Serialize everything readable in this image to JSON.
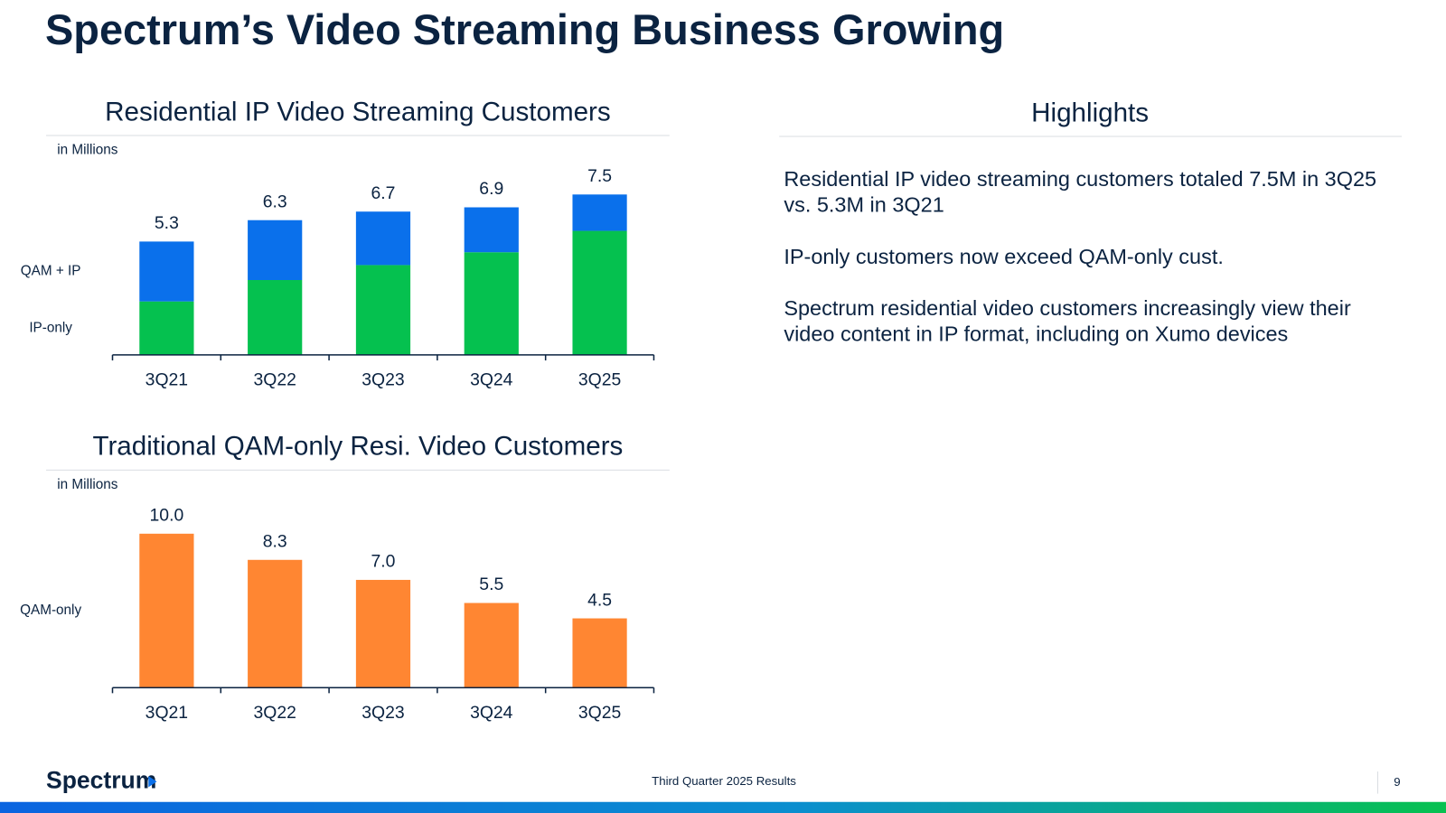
{
  "title": "Spectrum’s Video Streaming Business Growing",
  "chart_data": [
    {
      "type": "bar",
      "stacked": true,
      "title": "Residential IP Video Streaming Customers",
      "unit_label": "in Millions",
      "categories": [
        "3Q21",
        "3Q22",
        "3Q23",
        "3Q24",
        "3Q25"
      ],
      "series": [
        {
          "name": "IP-only",
          "color": "#05c14f",
          "values": [
            2.5,
            3.5,
            4.2,
            4.8,
            5.8
          ]
        },
        {
          "name": "QAM + IP",
          "color": "#0a70eb",
          "values": [
            2.8,
            2.8,
            2.5,
            2.1,
            1.7
          ]
        }
      ],
      "totals": [
        5.3,
        6.3,
        6.7,
        6.9,
        7.5
      ]
    },
    {
      "type": "bar",
      "title": "Traditional QAM-only Resi. Video Customers",
      "unit_label": "in Millions",
      "categories": [
        "3Q21",
        "3Q22",
        "3Q23",
        "3Q24",
        "3Q25"
      ],
      "series": [
        {
          "name": "QAM-only",
          "color": "#ff8632",
          "values": [
            10,
            8.3,
            7,
            5.5,
            4.5
          ],
          "value_labels": [
            "10.0",
            "8.3",
            "7.0",
            "5.5",
            "4.5"
          ]
        }
      ]
    }
  ],
  "highlights": {
    "title": "Highlights",
    "items": [
      "Residential IP video streaming customers totaled 7.5M in 3Q25 vs. 5.3M in 3Q21",
      "IP-only customers now exceed QAM-only cust.",
      "Spectrum residential video customers increasingly view their video content in IP format, including on Xumo devices"
    ]
  },
  "footer": {
    "logo": "Spectrum",
    "text": "Third Quarter 2025 Results",
    "page": "9"
  }
}
